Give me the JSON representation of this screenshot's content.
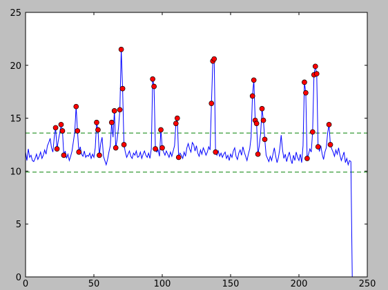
{
  "chart_data": {
    "type": "line",
    "xlim": [
      0,
      250
    ],
    "xticks": [
      0,
      50,
      100,
      150,
      200,
      250
    ],
    "ylim": [
      0,
      25
    ],
    "yticks": [
      0,
      5,
      10,
      15,
      20,
      25
    ],
    "hlines": [
      {
        "value": 13.6,
        "color": "#008000"
      },
      {
        "value": 9.9,
        "color": "#008000"
      }
    ],
    "series": [
      {
        "type": "line",
        "color": "#0000ff",
        "x": [
          0,
          1,
          2,
          3,
          4,
          5,
          6,
          7,
          8,
          9,
          10,
          11,
          12,
          13,
          14,
          15,
          16,
          17,
          18,
          19,
          20,
          21,
          22,
          23,
          24,
          25,
          26,
          27,
          28,
          29,
          30,
          31,
          32,
          33,
          34,
          35,
          36,
          37,
          38,
          39,
          40,
          41,
          42,
          43,
          44,
          45,
          46,
          47,
          48,
          49,
          50,
          51,
          52,
          53,
          54,
          55,
          56,
          57,
          58,
          59,
          60,
          61,
          62,
          63,
          64,
          65,
          66,
          67,
          68,
          69,
          70,
          71,
          72,
          73,
          74,
          75,
          76,
          77,
          78,
          79,
          80,
          81,
          82,
          83,
          84,
          85,
          86,
          87,
          88,
          89,
          90,
          91,
          92,
          93,
          94,
          95,
          96,
          97,
          98,
          99,
          100,
          101,
          102,
          103,
          104,
          105,
          106,
          107,
          108,
          109,
          110,
          111,
          112,
          113,
          114,
          115,
          116,
          117,
          118,
          119,
          120,
          121,
          122,
          123,
          124,
          125,
          126,
          127,
          128,
          129,
          130,
          131,
          132,
          133,
          134,
          135,
          136,
          137,
          138,
          139,
          140,
          141,
          142,
          143,
          144,
          145,
          146,
          147,
          148,
          149,
          150,
          151,
          152,
          153,
          154,
          155,
          156,
          157,
          158,
          159,
          160,
          161,
          162,
          163,
          164,
          165,
          166,
          167,
          168,
          169,
          170,
          171,
          172,
          173,
          174,
          175,
          176,
          177,
          178,
          179,
          180,
          181,
          182,
          183,
          184,
          185,
          186,
          187,
          188,
          189,
          190,
          191,
          192,
          193,
          194,
          195,
          196,
          197,
          198,
          199,
          200,
          201,
          202,
          203,
          204,
          205,
          206,
          207,
          208,
          209,
          210,
          211,
          212,
          213,
          214,
          215,
          216,
          217,
          218,
          219,
          220,
          221,
          222,
          223,
          224,
          225,
          226,
          227,
          228,
          229,
          230,
          231,
          232,
          233,
          234,
          235,
          236,
          237,
          238,
          239
        ],
        "values": [
          11.8,
          11.0,
          12.1,
          11.3,
          11.5,
          11.0,
          10.9,
          11.2,
          11.6,
          11.1,
          11.4,
          11.8,
          11.2,
          11.5,
          12.0,
          11.6,
          12.4,
          12.7,
          13.1,
          12.2,
          11.8,
          13.2,
          14.1,
          12.1,
          12.9,
          13.6,
          14.4,
          13.8,
          11.5,
          11.9,
          11.2,
          11.6,
          11.0,
          11.4,
          11.9,
          12.8,
          13.7,
          16.1,
          13.8,
          11.8,
          12.3,
          11.6,
          11.4,
          11.9,
          11.3,
          11.5,
          11.4,
          11.7,
          11.2,
          11.6,
          11.3,
          12.2,
          14.6,
          13.9,
          11.5,
          12.6,
          13.2,
          11.4,
          11.0,
          10.6,
          11.1,
          11.8,
          12.4,
          14.6,
          13.2,
          15.7,
          12.2,
          13.0,
          14.1,
          15.8,
          21.5,
          17.8,
          12.5,
          11.8,
          11.3,
          11.6,
          11.9,
          11.4,
          11.2,
          11.7,
          11.5,
          11.9,
          11.3,
          11.4,
          11.8,
          11.2,
          11.6,
          11.9,
          11.5,
          11.3,
          11.7,
          11.2,
          12.1,
          18.7,
          18.0,
          12.1,
          11.8,
          12.0,
          11.4,
          13.9,
          12.2,
          11.8,
          11.5,
          11.9,
          11.6,
          11.3,
          11.8,
          11.4,
          11.9,
          12.4,
          14.5,
          15.0,
          11.3,
          11.7,
          11.5,
          11.2,
          11.8,
          11.4,
          12.2,
          12.6,
          12.1,
          11.8,
          12.7,
          12.5,
          11.9,
          12.4,
          11.7,
          11.4,
          12.0,
          11.6,
          12.2,
          11.9,
          11.5,
          11.8,
          12.3,
          12.0,
          16.4,
          20.4,
          20.6,
          11.8,
          11.5,
          11.9,
          11.4,
          11.7,
          11.3,
          11.6,
          11.8,
          11.2,
          11.5,
          11.0,
          11.6,
          11.3,
          11.9,
          12.2,
          11.4,
          11.1,
          11.7,
          12.0,
          11.5,
          12.3,
          11.8,
          11.4,
          11.0,
          11.6,
          12.1,
          13.2,
          17.1,
          18.6,
          14.8,
          14.5,
          11.6,
          12.4,
          13.6,
          15.9,
          14.8,
          13.0,
          11.5,
          11.2,
          10.9,
          11.4,
          11.0,
          11.6,
          12.2,
          11.4,
          10.8,
          11.3,
          12.1,
          13.4,
          12.0,
          11.2,
          11.6,
          10.9,
          11.4,
          11.8,
          11.1,
          10.7,
          11.5,
          11.0,
          11.8,
          11.3,
          11.0,
          11.6,
          10.8,
          12.4,
          18.4,
          17.4,
          11.2,
          11.6,
          12.1,
          11.8,
          13.7,
          19.1,
          19.9,
          19.2,
          12.3,
          11.9,
          12.4,
          11.6,
          11.1,
          11.8,
          12.2,
          13.6,
          14.4,
          12.5,
          12.1,
          11.8,
          11.4,
          12.0,
          11.6,
          12.2,
          11.5,
          11.0,
          11.4,
          11.8,
          10.8,
          11.2,
          10.6,
          11.0,
          10.9,
          0
        ]
      },
      {
        "type": "scatter",
        "color": "#ff0000",
        "x": [
          22,
          23,
          26,
          27,
          28,
          37,
          38,
          39,
          52,
          53,
          54,
          63,
          65,
          66,
          69,
          70,
          71,
          72,
          93,
          94,
          95,
          99,
          100,
          110,
          111,
          112,
          136,
          137,
          138,
          139,
          166,
          167,
          168,
          169,
          170,
          173,
          174,
          175,
          204,
          205,
          206,
          210,
          211,
          212,
          213,
          214,
          222,
          223
        ],
        "values": [
          14.1,
          12.1,
          14.4,
          13.8,
          11.5,
          16.1,
          13.8,
          11.8,
          14.6,
          13.9,
          11.5,
          14.6,
          15.7,
          12.2,
          15.8,
          21.5,
          17.8,
          12.5,
          18.7,
          18.0,
          12.1,
          13.9,
          12.2,
          14.5,
          15.0,
          11.3,
          16.4,
          20.4,
          20.6,
          11.8,
          17.1,
          18.6,
          14.8,
          14.5,
          11.6,
          15.9,
          14.8,
          13.0,
          18.4,
          17.4,
          11.2,
          13.7,
          19.1,
          19.9,
          19.2,
          12.3,
          14.4,
          12.5
        ]
      }
    ]
  }
}
